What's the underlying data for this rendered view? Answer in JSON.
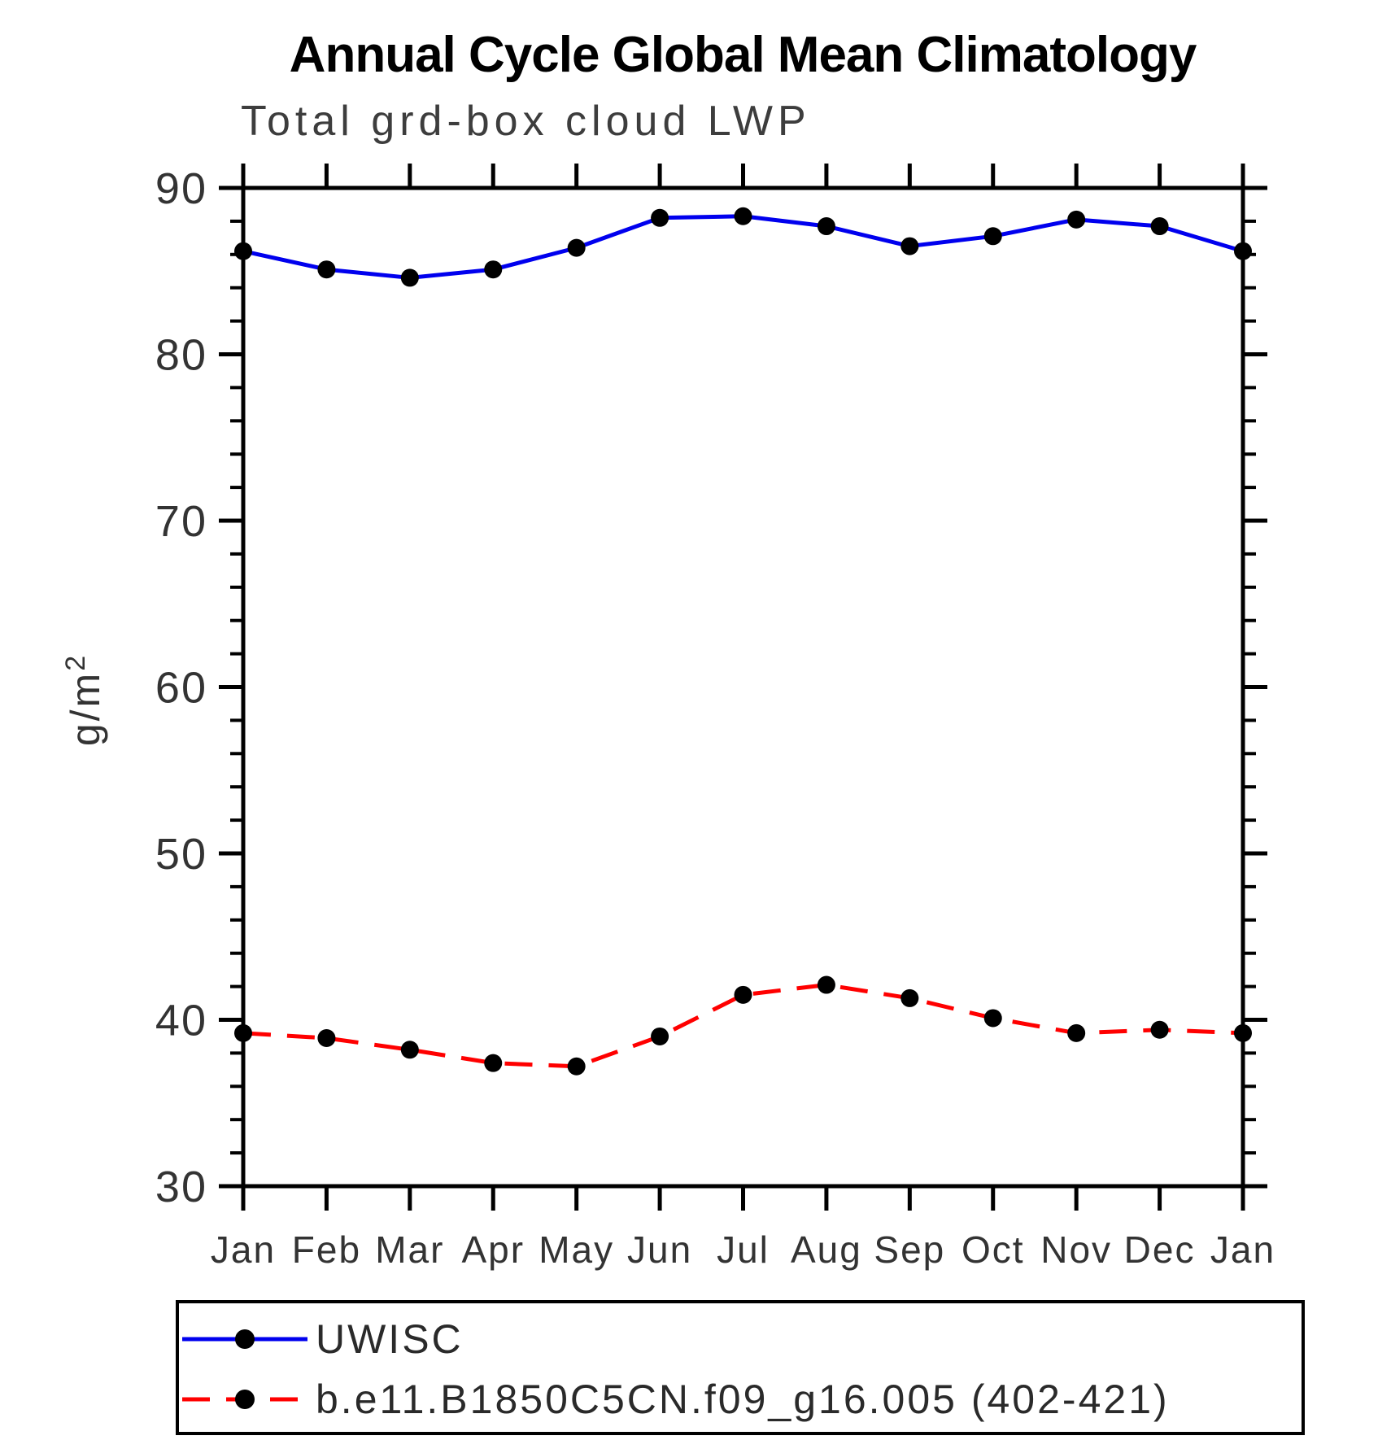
{
  "page": {
    "background": "#ffffff"
  },
  "chart_data": {
    "type": "line",
    "title": "Annual Cycle Global Mean Climatology",
    "subtitle": "Total grd-box cloud LWP",
    "ylabel_base": "g/m",
    "ylabel_exp": "2",
    "categories": [
      "Jan",
      "Feb",
      "Mar",
      "Apr",
      "May",
      "Jun",
      "Jul",
      "Aug",
      "Sep",
      "Oct",
      "Nov",
      "Dec",
      "Jan"
    ],
    "y_axis": {
      "min": 30,
      "max": 90,
      "major_step": 10,
      "minor_step": 2,
      "major_tick_labels": [
        "30",
        "40",
        "50",
        "60",
        "70",
        "80",
        "90"
      ]
    },
    "grid": "off",
    "legend_position": "bottom",
    "axis_color": "#000000",
    "marker_color": "#000000",
    "series": [
      {
        "name": "UWISC",
        "color": "#0000ee",
        "style": "solid",
        "marker": "circle",
        "values": [
          86.2,
          85.1,
          84.6,
          85.1,
          86.4,
          88.2,
          88.3,
          87.7,
          86.5,
          87.1,
          88.1,
          87.7,
          86.2
        ]
      },
      {
        "name": "b.e11.B1850C5CN.f09_g16.005 (402-421)",
        "color": "#ff0000",
        "style": "dashed",
        "marker": "circle",
        "values": [
          39.2,
          38.9,
          38.2,
          37.4,
          37.2,
          39.0,
          41.5,
          42.1,
          41.3,
          40.1,
          39.2,
          39.4,
          39.2
        ]
      }
    ]
  }
}
